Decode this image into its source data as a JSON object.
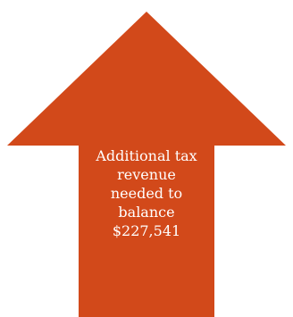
{
  "arrow": {
    "direction": "up",
    "fill_color": "#D2491A",
    "label_lines": [
      "Additional tax",
      "revenue",
      "needed to",
      "balance",
      "$227,541"
    ]
  }
}
